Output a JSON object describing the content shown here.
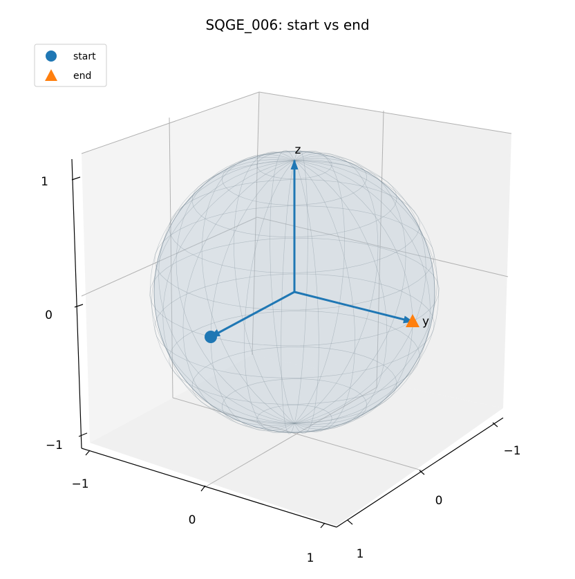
{
  "chart_data": {
    "type": "scatter",
    "title": "SQGE_006: start vs end",
    "xlabel": "",
    "ylabel": "",
    "zlabel": "",
    "xlim": [
      -1,
      1
    ],
    "ylim": [
      -1,
      1
    ],
    "zlim": [
      -1,
      1
    ],
    "x_ticks": [
      "−1",
      "0",
      "1"
    ],
    "y_ticks": [
      "−1",
      "0",
      "1"
    ],
    "z_ticks": [
      "−1",
      "0",
      "1"
    ],
    "axis_arrows": [
      {
        "name": "x",
        "label": "",
        "vector": [
          1,
          0,
          0
        ]
      },
      {
        "name": "y",
        "label": "y",
        "vector": [
          0,
          1,
          0
        ]
      },
      {
        "name": "z",
        "label": "z",
        "vector": [
          0,
          0,
          1
        ]
      }
    ],
    "series": [
      {
        "name": "start",
        "marker": "circle",
        "color": "#1f77b4",
        "points": [
          [
            1,
            0,
            0
          ]
        ]
      },
      {
        "name": "end",
        "marker": "triangle",
        "color": "#ff7f0e",
        "points": [
          [
            0,
            1,
            0
          ]
        ]
      }
    ],
    "sphere": {
      "radius": 1,
      "wireframe": true
    },
    "grid": true,
    "legend_position": "top-left",
    "colors": {
      "arrow": "#1f77b4",
      "start": "#1f77b4",
      "end": "#ff7f0e"
    }
  }
}
